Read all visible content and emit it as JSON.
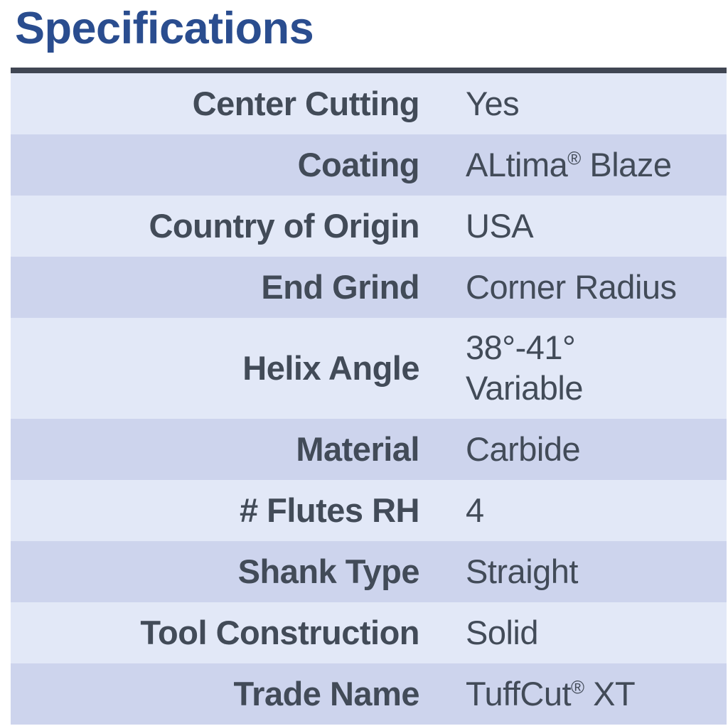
{
  "page": {
    "title": "Specifications"
  },
  "colors": {
    "title": "#2a4d8f",
    "divider": "#404653",
    "row_light": "#e2e8f7",
    "row_dark": "#cdd4ed",
    "text": "#424b58"
  },
  "specs": {
    "rows": [
      {
        "label": "Center Cutting",
        "value": "Yes"
      },
      {
        "label": "Coating",
        "value": "ALtima® Blaze"
      },
      {
        "label": "Country of Origin",
        "value": "USA"
      },
      {
        "label": "End Grind",
        "value": "Corner Radius"
      },
      {
        "label": "Helix Angle",
        "value": "38°-41°\nVariable"
      },
      {
        "label": "Material",
        "value": "Carbide"
      },
      {
        "label": "# Flutes RH",
        "value": "4"
      },
      {
        "label": "Shank Type",
        "value": "Straight"
      },
      {
        "label": "Tool Construction",
        "value": "Solid"
      },
      {
        "label": "Trade Name",
        "value": "TuffCut® XT"
      }
    ]
  }
}
